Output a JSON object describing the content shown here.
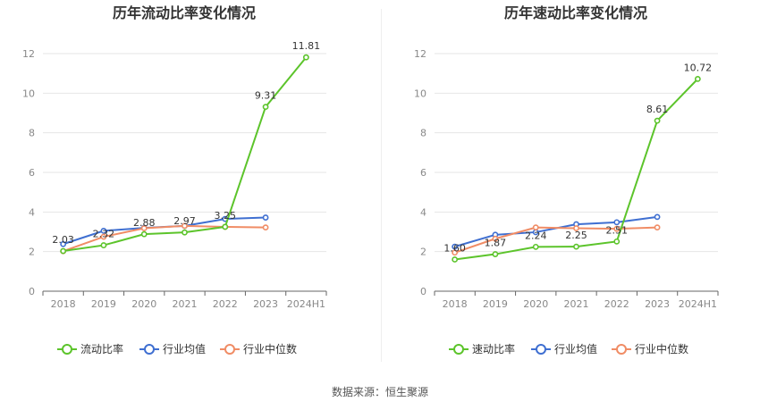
{
  "source_text": "数据来源：恒生聚源",
  "colors": {
    "company": "#5cc42b",
    "industry_avg": "#3f6fd1",
    "industry_median": "#f08c65",
    "grid": "#e6e6e6",
    "axis": "#888888",
    "title": "#333333"
  },
  "chart_data": [
    {
      "type": "line",
      "title": "历年流动比率变化情况",
      "categories": [
        "2018",
        "2019",
        "2020",
        "2021",
        "2022",
        "2023",
        "2024H1"
      ],
      "ylim": [
        0,
        12
      ],
      "yticks": [
        0,
        2,
        4,
        6,
        8,
        10,
        12
      ],
      "grid": true,
      "legend_position": "bottom",
      "series": [
        {
          "name": "流动比率",
          "color_key": "company",
          "values": [
            2.03,
            2.32,
            2.88,
            2.97,
            3.25,
            9.31,
            11.81
          ],
          "labels": [
            "2.03",
            "2.32",
            "2.88",
            "2.97",
            "3.25",
            "9.31",
            "11.81"
          ]
        },
        {
          "name": "行业均值",
          "color_key": "industry_avg",
          "values": [
            2.38,
            3.05,
            3.2,
            3.3,
            3.65,
            3.72,
            null
          ]
        },
        {
          "name": "行业中位数",
          "color_key": "industry_median",
          "values": [
            2.02,
            2.75,
            3.18,
            3.3,
            3.25,
            3.22,
            null
          ]
        }
      ]
    },
    {
      "type": "line",
      "title": "历年速动比率变化情况",
      "categories": [
        "2018",
        "2019",
        "2020",
        "2021",
        "2022",
        "2023",
        "2024H1"
      ],
      "ylim": [
        0,
        12
      ],
      "yticks": [
        0,
        2,
        4,
        6,
        8,
        10,
        12
      ],
      "grid": true,
      "legend_position": "bottom",
      "series": [
        {
          "name": "速动比率",
          "color_key": "company",
          "values": [
            1.6,
            1.87,
            2.24,
            2.25,
            2.51,
            8.61,
            10.72
          ],
          "labels": [
            "1.60",
            "1.87",
            "2.24",
            "2.25",
            "2.51",
            "8.61",
            "10.72"
          ]
        },
        {
          "name": "行业均值",
          "color_key": "industry_avg",
          "values": [
            2.25,
            2.85,
            2.98,
            3.38,
            3.48,
            3.75,
            null
          ]
        },
        {
          "name": "行业中位数",
          "color_key": "industry_median",
          "values": [
            1.95,
            2.65,
            3.22,
            3.18,
            3.15,
            3.22,
            null
          ]
        }
      ]
    }
  ]
}
